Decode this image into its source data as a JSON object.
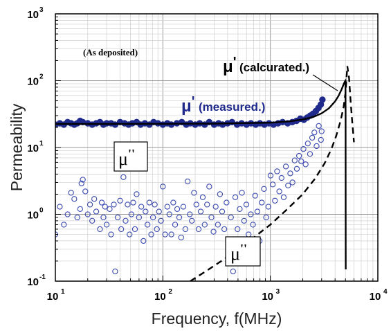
{
  "chart_data": {
    "type": "scatter",
    "title": "",
    "xlabel": "Frequency, f(MHz)",
    "ylabel": "Permeability",
    "x_scale": "log",
    "y_scale": "log",
    "xlim": [
      10,
      10000
    ],
    "ylim": [
      0.1,
      1000
    ],
    "grid": true,
    "x_ticks": [
      {
        "base": "10",
        "exp": "1",
        "value": 10
      },
      {
        "base": "10",
        "exp": "2",
        "value": 100
      },
      {
        "base": "10",
        "exp": "3",
        "value": 1000
      },
      {
        "base": "10",
        "exp": "4",
        "value": 10000
      }
    ],
    "y_ticks": [
      {
        "base": "10",
        "exp": "-1",
        "value": 0.1
      },
      {
        "base": "10",
        "exp": "0",
        "value": 1
      },
      {
        "base": "10",
        "exp": "1",
        "value": 10
      },
      {
        "base": "10",
        "exp": "2",
        "value": 100
      },
      {
        "base": "10",
        "exp": "3",
        "value": 1000
      }
    ],
    "annotations": {
      "sample": "(As deposited)",
      "mu_symbol": "μ",
      "mu_prime_mark": "'",
      "mu_double_prime_mark": "''",
      "calculated_label": "(calcurated.)",
      "measured_label": "(measured.)"
    },
    "series": [
      {
        "role": "mu_prime_measured",
        "style": "filled-circles",
        "color": "#1f2a8c",
        "x": [
          10,
          11,
          12,
          13,
          14,
          15,
          16,
          17,
          18,
          20,
          22,
          24,
          26,
          28,
          30,
          33,
          36,
          40,
          44,
          48,
          52,
          57,
          62,
          68,
          75,
          82,
          90,
          100,
          110,
          120,
          135,
          150,
          165,
          180,
          200,
          220,
          245,
          270,
          300,
          330,
          360,
          400,
          440,
          490,
          540,
          600,
          660,
          730,
          800,
          880,
          970,
          1070,
          1180,
          1300,
          1450,
          1600,
          1750,
          1900,
          2050,
          2200,
          2350,
          2500,
          2650,
          2800,
          2950,
          3050
        ],
        "y": [
          22,
          23,
          22,
          24,
          23,
          22,
          23,
          25,
          24,
          23,
          22,
          23,
          24,
          22,
          23,
          23,
          22,
          24,
          23,
          22,
          23,
          24,
          22,
          23,
          22,
          24,
          23,
          22,
          23,
          22,
          23,
          24,
          22,
          23,
          22,
          23,
          22,
          24,
          22,
          23,
          22,
          23,
          24,
          22,
          23,
          22,
          23,
          22,
          23,
          22,
          23,
          22,
          23,
          24,
          23,
          24,
          25,
          27,
          26,
          28,
          30,
          32,
          35,
          39,
          44,
          52
        ]
      },
      {
        "role": "mu_double_prime_measured",
        "style": "open-circles",
        "color": "#3a4ab0",
        "x": [
          10,
          11,
          12,
          13,
          14,
          15,
          16,
          17,
          17.5,
          18,
          19,
          20,
          21,
          22,
          23,
          24,
          26,
          27,
          28,
          29,
          30,
          32,
          33,
          35,
          36,
          38,
          40,
          41,
          43,
          45,
          47,
          49,
          51,
          53,
          55,
          57,
          60,
          63,
          66,
          69,
          72,
          75,
          78,
          81,
          84,
          88,
          92,
          96,
          100,
          105,
          110,
          115,
          120,
          125,
          130,
          136,
          142,
          148,
          155,
          162,
          170,
          178,
          186,
          195,
          205,
          215,
          225,
          235,
          245,
          258,
          270,
          283,
          296,
          310,
          325,
          340,
          356,
          373,
          391,
          410,
          430,
          450,
          472,
          495,
          519,
          544,
          570,
          598,
          627,
          657,
          689,
          722,
          757,
          794,
          832,
          872,
          914,
          958,
          1004,
          1052,
          1103,
          1156,
          1212,
          1270,
          1331,
          1395,
          1462,
          1532,
          1606,
          1683,
          1764,
          1849,
          1938,
          2031,
          2129,
          2231,
          2338,
          2450,
          2568,
          2691,
          2820,
          2955,
          3000
        ],
        "y": [
          0.5,
          1.3,
          0.7,
          1.0,
          2.1,
          1.7,
          0.9,
          1.2,
          2.9,
          3.3,
          2.2,
          1.0,
          1.4,
          0.8,
          1.7,
          1.1,
          0.6,
          1.5,
          0.9,
          1.3,
          0.7,
          1.2,
          0.5,
          1.4,
          0.14,
          0.9,
          1.6,
          0.6,
          3.6,
          0.8,
          1.4,
          0.5,
          1.0,
          1.5,
          0.6,
          2.0,
          0.9,
          1.3,
          0.4,
          1.1,
          0.7,
          1.5,
          0.5,
          0.9,
          1.4,
          0.6,
          1.1,
          0.8,
          2.6,
          0.5,
          1.3,
          1.0,
          0.5,
          1.5,
          0.7,
          1.2,
          0.9,
          0.45,
          1.3,
          0.6,
          3.1,
          1.0,
          0.8,
          2.1,
          1.4,
          0.6,
          1.1,
          1.8,
          0.7,
          1.4,
          2.6,
          0.9,
          0.55,
          1.3,
          0.7,
          2.0,
          1.1,
          0.6,
          1.5,
          0.3,
          0.9,
          0.14,
          1.8,
          0.6,
          1.2,
          2.1,
          0.8,
          1.4,
          0.5,
          1.0,
          0.7,
          1.9,
          1.1,
          0.4,
          1.5,
          2.4,
          0.9,
          1.3,
          3.8,
          2.8,
          1.6,
          4.4,
          2.2,
          3.5,
          1.8,
          5.2,
          2.7,
          4.1,
          3.0,
          6.4,
          4.8,
          7.5,
          6.2,
          9.5,
          5.6,
          11.5,
          8.0,
          14.0,
          16.8,
          10.5,
          21.0,
          13.0,
          17.5
        ]
      },
      {
        "role": "mu_prime_calculated",
        "style": "solid-line",
        "color": "#000000",
        "x": [
          10,
          30,
          100,
          300,
          1000,
          1500,
          2000,
          2500,
          3000,
          3500,
          4000,
          4300,
          4600,
          4800,
          4950,
          5000,
          5010,
          5020,
          5030
        ],
        "y": [
          22.5,
          22.5,
          22.6,
          22.8,
          23.5,
          24.6,
          26.2,
          28.6,
          32.5,
          38.5,
          49,
          59,
          74,
          88,
          98,
          100,
          30,
          1,
          0.15
        ]
      },
      {
        "role": "mu_double_prime_calculated",
        "style": "dashed-line",
        "color": "#000000",
        "x": [
          180,
          250,
          350,
          500,
          700,
          1000,
          1400,
          2000,
          2600,
          3200,
          3700,
          4100,
          4500,
          4800,
          5000,
          5200,
          5400,
          5600,
          5800,
          6000
        ],
        "y": [
          0.1,
          0.14,
          0.2,
          0.3,
          0.45,
          0.7,
          1.15,
          2.0,
          3.4,
          5.8,
          9.5,
          15,
          25,
          40,
          65,
          165,
          110,
          45,
          22,
          12
        ]
      }
    ]
  }
}
